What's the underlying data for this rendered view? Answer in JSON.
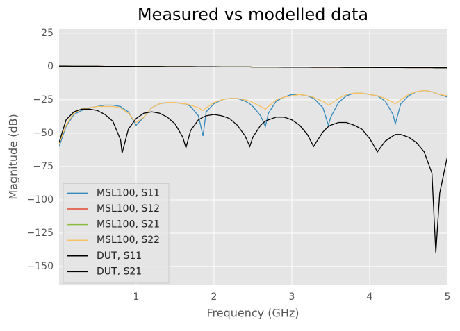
{
  "chart_data": {
    "type": "line",
    "title": "Measured vs modelled data",
    "x_label": "Frequency (GHz)",
    "y_label": "Magnitude (dB)",
    "x": [
      0.01,
      0.1,
      0.2,
      0.3,
      0.4,
      0.5,
      0.6,
      0.7,
      0.8,
      0.82,
      0.9,
      1.0,
      1.1,
      1.2,
      1.3,
      1.4,
      1.5,
      1.6,
      1.64,
      1.7,
      1.8,
      1.86,
      1.9,
      2.0,
      2.1,
      2.2,
      2.3,
      2.4,
      2.46,
      2.5,
      2.6,
      2.66,
      2.7,
      2.8,
      2.9,
      3.0,
      3.1,
      3.2,
      3.28,
      3.3,
      3.4,
      3.47,
      3.5,
      3.6,
      3.7,
      3.8,
      3.9,
      4.0,
      4.1,
      4.2,
      4.3,
      4.33,
      4.4,
      4.5,
      4.6,
      4.7,
      4.8,
      4.85,
      4.9,
      5.0
    ],
    "series": [
      {
        "name": "MSL100, S11",
        "color": "#348ABD",
        "values": [
          -60,
          -45,
          -36,
          -33,
          -31,
          -30,
          -29,
          -29,
          -30,
          -31,
          -34,
          -44,
          -38,
          -31,
          -28,
          -27,
          -27,
          -28,
          -28,
          -30,
          -37,
          -52,
          -34,
          -28,
          -25,
          -24,
          -24,
          -26,
          -28,
          -30,
          -37,
          -45,
          -35,
          -26,
          -23,
          -21,
          -21,
          -22,
          -24,
          -25,
          -31,
          -44,
          -38,
          -27,
          -22,
          -20,
          -20,
          -21,
          -22,
          -26,
          -36,
          -43,
          -28,
          -22,
          -19,
          -18,
          -19,
          -20,
          -21,
          -23
        ]
      },
      {
        "name": "MSL100, S12",
        "color": "#E24A33",
        "values": [
          0.3,
          0.3,
          0.2,
          0.2,
          0.2,
          0.2,
          0.1,
          0.1,
          0.1,
          0.1,
          0.1,
          0,
          0,
          0,
          0,
          -0.1,
          -0.1,
          -0.1,
          -0.1,
          -0.1,
          -0.2,
          -0.2,
          -0.2,
          -0.2,
          -0.3,
          -0.3,
          -0.3,
          -0.3,
          -0.3,
          -0.4,
          -0.4,
          -0.4,
          -0.4,
          -0.4,
          -0.5,
          -0.5,
          -0.5,
          -0.5,
          -0.6,
          -0.6,
          -0.6,
          -0.6,
          -0.6,
          -0.6,
          -0.7,
          -0.7,
          -0.7,
          -0.7,
          -0.8,
          -0.8,
          -0.8,
          -0.8,
          -0.8,
          -0.9,
          -0.9,
          -0.9,
          -0.9,
          -1.0,
          -1.0,
          -1.0
        ]
      },
      {
        "name": "MSL100, S21",
        "color": "#8EBA42",
        "values": [
          0.3,
          0.3,
          0.2,
          0.2,
          0.2,
          0.2,
          0.1,
          0.1,
          0.1,
          0.1,
          0.1,
          0,
          0,
          0,
          0,
          -0.1,
          -0.1,
          -0.1,
          -0.1,
          -0.1,
          -0.2,
          -0.2,
          -0.2,
          -0.2,
          -0.3,
          -0.3,
          -0.3,
          -0.3,
          -0.3,
          -0.4,
          -0.4,
          -0.4,
          -0.4,
          -0.4,
          -0.5,
          -0.5,
          -0.5,
          -0.5,
          -0.6,
          -0.6,
          -0.6,
          -0.6,
          -0.6,
          -0.6,
          -0.7,
          -0.7,
          -0.7,
          -0.7,
          -0.8,
          -0.8,
          -0.8,
          -0.8,
          -0.8,
          -0.9,
          -0.9,
          -0.9,
          -0.9,
          -1.0,
          -1.0,
          -1.0
        ]
      },
      {
        "name": "MSL100, S22",
        "color": "#FBC15E",
        "values": [
          -58,
          -44,
          -35,
          -32,
          -31,
          -30,
          -30,
          -30,
          -31,
          -32,
          -35,
          -42,
          -38,
          -31,
          -28,
          -27,
          -27,
          -28,
          -28,
          -29,
          -31,
          -33,
          -31,
          -27,
          -25,
          -24,
          -24,
          -25,
          -26,
          -27,
          -30,
          -32,
          -30,
          -25,
          -23,
          -22,
          -21,
          -22,
          -23,
          -24,
          -26,
          -29,
          -28,
          -24,
          -21,
          -20,
          -20,
          -21,
          -22,
          -24,
          -27,
          -28,
          -25,
          -21,
          -19,
          -18,
          -19,
          -20,
          -21,
          -22
        ]
      },
      {
        "name": "DUT, S11",
        "color": "#000000",
        "values": [
          -57,
          -40,
          -34,
          -32,
          -32,
          -33,
          -36,
          -41,
          -55,
          -65,
          -47,
          -39,
          -35,
          -34,
          -35,
          -38,
          -43,
          -53,
          -61,
          -48,
          -40,
          -38,
          -37,
          -36,
          -37,
          -39,
          -44,
          -52,
          -60,
          -53,
          -44,
          -41,
          -40,
          -38,
          -38,
          -40,
          -44,
          -51,
          -60,
          -58,
          -49,
          -45,
          -44,
          -42,
          -42,
          -44,
          -47,
          -54,
          -64,
          -56,
          -52,
          -51,
          -51,
          -53,
          -57,
          -64,
          -80,
          -140,
          -95,
          -67
        ]
      },
      {
        "name": "DUT, S21",
        "color": "#000000",
        "values": [
          0.3,
          0.3,
          0.2,
          0.2,
          0.2,
          0.2,
          0.1,
          0.1,
          0.1,
          0.1,
          0.1,
          0,
          0,
          0,
          0,
          -0.1,
          -0.1,
          -0.1,
          -0.1,
          -0.1,
          -0.2,
          -0.2,
          -0.2,
          -0.2,
          -0.3,
          -0.3,
          -0.3,
          -0.3,
          -0.3,
          -0.4,
          -0.4,
          -0.4,
          -0.4,
          -0.4,
          -0.5,
          -0.5,
          -0.5,
          -0.5,
          -0.6,
          -0.6,
          -0.6,
          -0.6,
          -0.6,
          -0.6,
          -0.7,
          -0.7,
          -0.7,
          -0.7,
          -0.8,
          -0.8,
          -0.8,
          -0.8,
          -0.8,
          -0.9,
          -0.9,
          -0.9,
          -0.9,
          -1.0,
          -1.0,
          -1.0
        ]
      }
    ],
    "xlim": [
      0.01,
      5
    ],
    "ylim": [
      -164,
      28
    ],
    "xticks": [
      1,
      2,
      3,
      4,
      5
    ],
    "yticks": [
      25,
      0,
      {
        "value": -25,
        "label": "−25"
      },
      {
        "value": -50,
        "label": "−50"
      },
      {
        "value": -75,
        "label": "−75"
      },
      {
        "value": -100,
        "label": "−100"
      },
      {
        "value": -125,
        "label": "−125"
      },
      {
        "value": -150,
        "label": "−150"
      }
    ],
    "grid": true,
    "legend": "lower left"
  }
}
